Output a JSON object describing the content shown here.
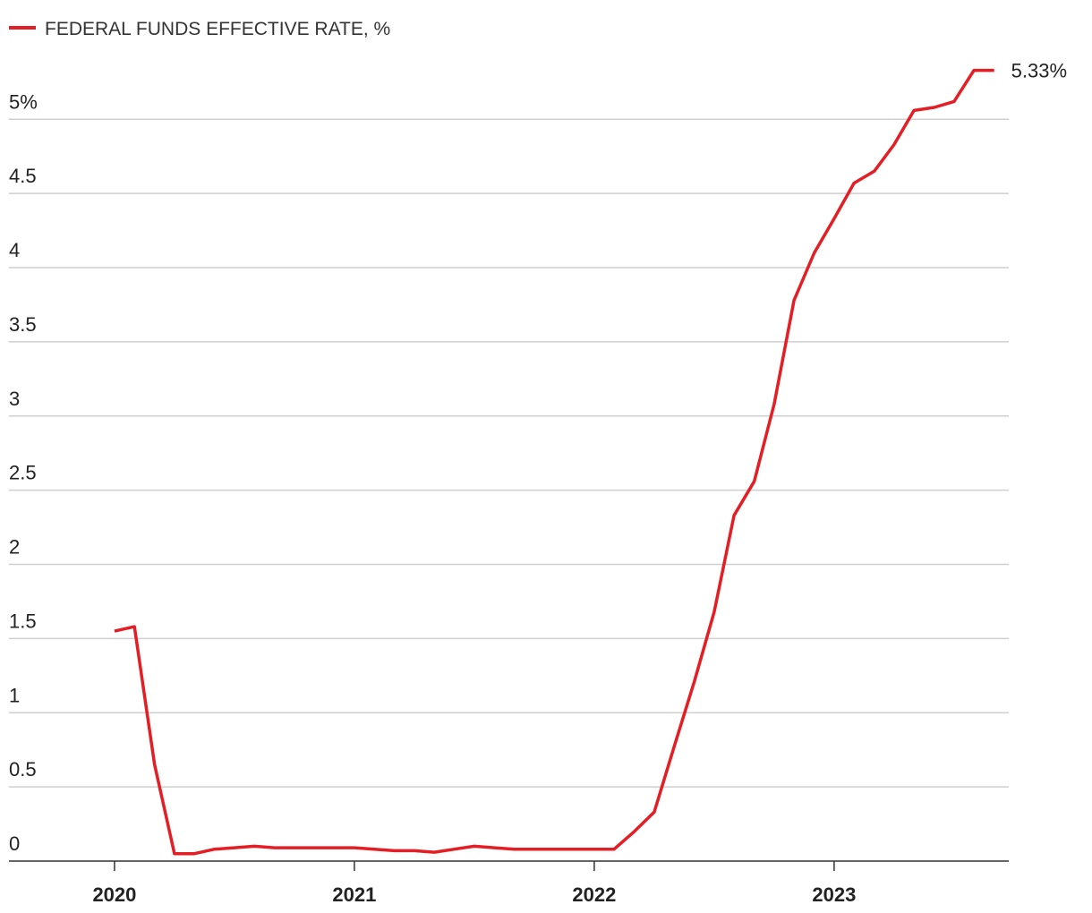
{
  "chart_data": {
    "type": "line",
    "x": [
      2020.0,
      2020.083,
      2020.167,
      2020.25,
      2020.333,
      2020.417,
      2020.5,
      2020.583,
      2020.667,
      2020.75,
      2020.833,
      2020.917,
      2021.0,
      2021.083,
      2021.167,
      2021.25,
      2021.333,
      2021.417,
      2021.5,
      2021.583,
      2021.667,
      2021.75,
      2021.833,
      2021.917,
      2022.0,
      2022.083,
      2022.167,
      2022.25,
      2022.333,
      2022.417,
      2022.5,
      2022.583,
      2022.667,
      2022.75,
      2022.833,
      2022.917,
      2023.0,
      2023.083,
      2023.167,
      2023.25,
      2023.333,
      2023.417,
      2023.5,
      2023.583,
      2023.667
    ],
    "series": [
      {
        "name": "FEDERAL FUNDS EFFECTIVE RATE, %",
        "color": "#e31e24",
        "values": [
          1.55,
          1.58,
          0.65,
          0.05,
          0.05,
          0.08,
          0.09,
          0.1,
          0.09,
          0.09,
          0.09,
          0.09,
          0.09,
          0.08,
          0.07,
          0.07,
          0.06,
          0.08,
          0.1,
          0.09,
          0.08,
          0.08,
          0.08,
          0.08,
          0.08,
          0.08,
          0.2,
          0.33,
          0.77,
          1.21,
          1.68,
          2.33,
          2.56,
          3.08,
          3.78,
          4.1,
          4.33,
          4.57,
          4.65,
          4.83,
          5.06,
          5.08,
          5.12,
          5.33,
          5.33
        ],
        "value_labels": [
          null,
          null,
          null,
          null,
          null,
          null,
          null,
          null,
          null,
          null,
          null,
          null,
          null,
          null,
          null,
          null,
          null,
          null,
          null,
          null,
          null,
          null,
          null,
          null,
          null,
          null,
          null,
          null,
          null,
          null,
          null,
          null,
          null,
          null,
          null,
          null,
          null,
          null,
          null,
          null,
          null,
          null,
          null,
          null,
          "5.33%"
        ]
      }
    ],
    "xlim": [
      2019.56,
      2023.728
    ],
    "xticks": [
      2020,
      2021,
      2022,
      2023
    ],
    "ylim": [
      0,
      5.4
    ],
    "yticks": [
      0,
      0.5,
      1,
      1.5,
      2,
      2.5,
      3,
      3.5,
      4,
      4.5,
      {
        "value": 5,
        "label": "5%"
      }
    ],
    "grid": true
  }
}
